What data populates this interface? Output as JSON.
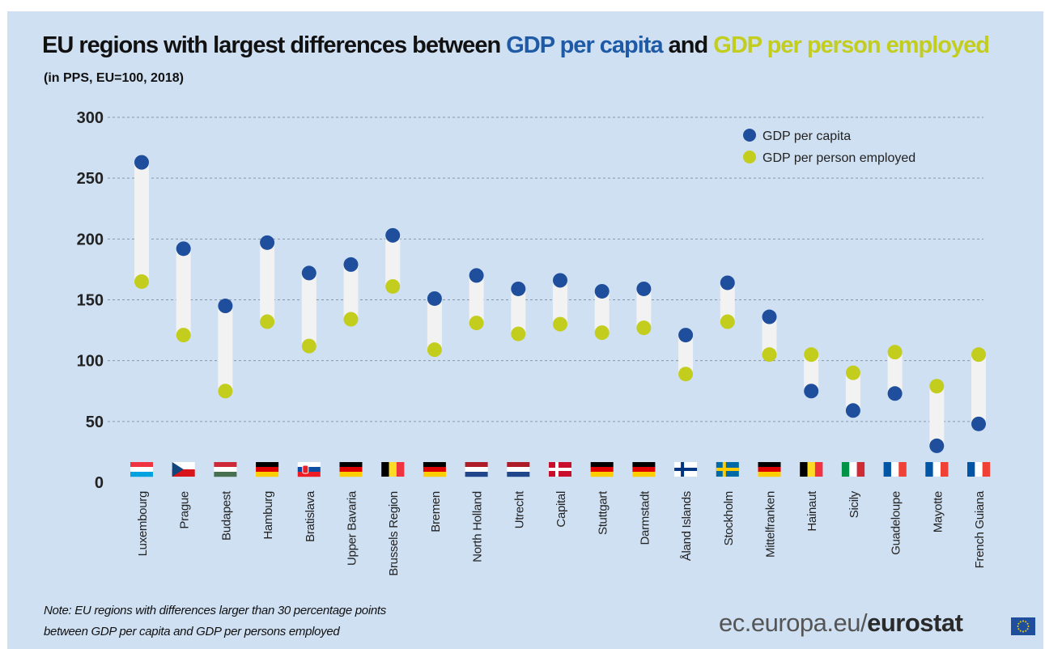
{
  "header": {
    "title_part1": "EU regions with largest differences between ",
    "title_part2": "GDP per capita",
    "title_part3": " and ",
    "title_part4": "GDP per person employed",
    "subtitle": "(in PPS, EU=100, 2018)"
  },
  "footer": {
    "note_line1": "Note: EU regions with differences larger than 30 percentage points",
    "note_line2": "between GDP per capita and GDP per persons employed",
    "source_prefix": "ec.europa.eu/",
    "source_brand": "eurostat"
  },
  "colors": {
    "gdp_per_capita": "#1f4e9c",
    "gdp_per_person_employed": "#c3cd1e",
    "background": "#cfe0f3",
    "range_bar": "#f2f2f2"
  },
  "chart_data": {
    "type": "dumbbell",
    "title": "EU regions with largest differences between GDP per capita and GDP per person employed",
    "subtitle": "(in PPS, EU=100, 2018)",
    "ylim": [
      0,
      300
    ],
    "yticks": [
      0,
      50,
      100,
      150,
      200,
      250,
      300
    ],
    "grid": true,
    "legend_position": "top-right",
    "categories": [
      "Luxembourg",
      "Prague",
      "Budapest",
      "Hamburg",
      "Bratislava",
      "Upper Bavaria",
      "Brussels Region",
      "Bremen",
      "North Holland",
      "Utrecht",
      "Capital",
      "Stuttgart",
      "Darmstadt",
      "Åland Islands",
      "Stockholm",
      "Mittelfranken",
      "Hainaut",
      "Sicily",
      "Guadeloupe",
      "Mayotte",
      "French Guiana"
    ],
    "flags": [
      "lu",
      "cz",
      "hu",
      "de",
      "sk",
      "de",
      "be",
      "de",
      "nl",
      "nl",
      "dk",
      "de",
      "de",
      "fi",
      "se",
      "de",
      "be",
      "it",
      "fr",
      "fr",
      "fr"
    ],
    "series": [
      {
        "name": "GDP per capita",
        "values": [
          263,
          192,
          145,
          197,
          172,
          179,
          203,
          151,
          170,
          159,
          166,
          157,
          159,
          121,
          164,
          136,
          75,
          59,
          73,
          30,
          48
        ]
      },
      {
        "name": "GDP per person employed",
        "values": [
          165,
          121,
          75,
          132,
          112,
          134,
          161,
          109,
          131,
          122,
          130,
          123,
          127,
          89,
          132,
          105,
          105,
          90,
          107,
          79,
          105
        ]
      }
    ]
  }
}
